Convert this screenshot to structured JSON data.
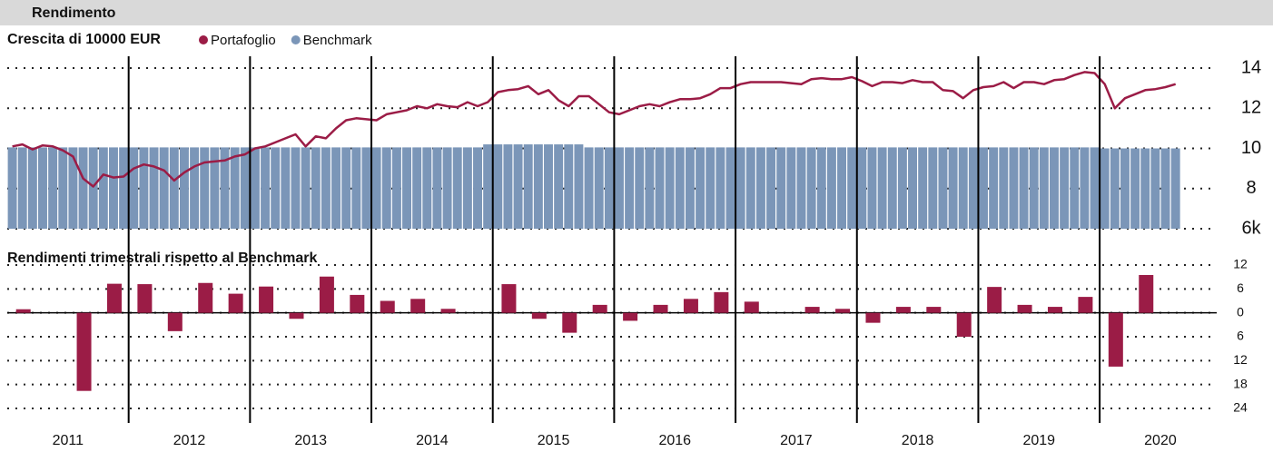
{
  "header": {
    "title": "Rendimento"
  },
  "years": [
    "2011",
    "2012",
    "2013",
    "2014",
    "2015",
    "2016",
    "2017",
    "2018",
    "2019",
    "2020"
  ],
  "chart_data": [
    {
      "type": "combo",
      "title": "Crescita di 10000 EUR",
      "categories": [
        null,
        null,
        null,
        null,
        null,
        null,
        null,
        null,
        null,
        null,
        null,
        null,
        null,
        null,
        null,
        null,
        null,
        null,
        null,
        null,
        null,
        null,
        null,
        null,
        null,
        null,
        null,
        null,
        null,
        null,
        null,
        null,
        null,
        null,
        null,
        null,
        null,
        null,
        null,
        null,
        null,
        null,
        null,
        null,
        null,
        null,
        null,
        null,
        null,
        null,
        null,
        null,
        null,
        null,
        null,
        null,
        null,
        null,
        null,
        null,
        null,
        null,
        null,
        null,
        null,
        null,
        null,
        null,
        null,
        null,
        null,
        null,
        null,
        null,
        null,
        null,
        null,
        null,
        null,
        null,
        null,
        null,
        null,
        null,
        null,
        null,
        null,
        null,
        null,
        null,
        null,
        null,
        null,
        null,
        null,
        null,
        null,
        null,
        null,
        null,
        null,
        null,
        null,
        null,
        null,
        null,
        null,
        null,
        null,
        null,
        null,
        null,
        null,
        null,
        null,
        null
      ],
      "series": [
        {
          "name": "Portafoglio",
          "color": "#9b1c46",
          "kind": "line",
          "values": [
            10.1,
            10.2,
            9.95,
            10.15,
            10.1,
            9.9,
            9.6,
            8.5,
            8.1,
            8.7,
            8.55,
            8.6,
            9.0,
            9.2,
            9.1,
            8.9,
            8.4,
            8.8,
            9.1,
            9.3,
            9.35,
            9.4,
            9.6,
            9.7,
            10.0,
            10.1,
            10.3,
            10.5,
            10.7,
            10.1,
            10.6,
            10.5,
            11.0,
            11.4,
            11.5,
            11.45,
            11.4,
            11.7,
            11.8,
            11.9,
            12.1,
            12.0,
            12.2,
            12.1,
            12.05,
            12.3,
            12.1,
            12.3,
            12.8,
            12.9,
            12.95,
            13.1,
            12.7,
            12.9,
            12.4,
            12.1,
            12.6,
            12.6,
            12.2,
            11.8,
            11.7,
            11.9,
            12.1,
            12.2,
            12.1,
            12.3,
            12.45,
            12.45,
            12.5,
            12.7,
            13.0,
            13.0,
            13.2,
            13.3,
            13.3,
            13.3,
            13.3,
            13.25,
            13.2,
            13.45,
            13.5,
            13.45,
            13.45,
            13.55,
            13.35,
            13.1,
            13.3,
            13.3,
            13.25,
            13.4,
            13.3,
            13.3,
            12.9,
            12.85,
            12.5,
            12.9,
            13.05,
            13.1,
            13.3,
            13.0,
            13.3,
            13.3,
            13.2,
            13.4,
            13.45,
            13.65,
            13.8,
            13.75,
            13.2,
            12.0,
            12.5,
            12.7,
            12.9,
            12.95,
            13.05,
            13.2
          ]
        },
        {
          "name": "Benchmark",
          "color": "#7b96b8",
          "kind": "bar",
          "values": [
            10.05,
            10.05,
            10.05,
            10.05,
            10.05,
            10.05,
            10.05,
            10.05,
            10.05,
            10.05,
            10.05,
            10.05,
            10.05,
            10.05,
            10.05,
            10.05,
            10.05,
            10.05,
            10.05,
            10.05,
            10.05,
            10.05,
            10.05,
            10.05,
            10.05,
            10.05,
            10.05,
            10.05,
            10.05,
            10.05,
            10.05,
            10.05,
            10.05,
            10.05,
            10.05,
            10.05,
            10.05,
            10.05,
            10.05,
            10.05,
            10.05,
            10.05,
            10.05,
            10.05,
            10.05,
            10.05,
            10.05,
            10.2,
            10.2,
            10.2,
            10.2,
            10.2,
            10.2,
            10.2,
            10.2,
            10.2,
            10.2,
            10.05,
            10.05,
            10.05,
            10.05,
            10.05,
            10.05,
            10.05,
            10.05,
            10.05,
            10.05,
            10.05,
            10.05,
            10.05,
            10.05,
            10.05,
            10.05,
            10.05,
            10.05,
            10.05,
            10.05,
            10.05,
            10.05,
            10.05,
            10.05,
            10.05,
            10.05,
            10.05,
            10.05,
            10.05,
            10.05,
            10.05,
            10.05,
            10.05,
            10.05,
            10.05,
            10.05,
            10.05,
            10.05,
            10.05,
            10.05,
            10.05,
            10.05,
            10.05,
            10.05,
            10.05,
            10.05,
            10.05,
            10.05,
            10.05,
            10.05,
            10.05,
            10.0,
            10.0,
            10.0,
            10.0,
            10.0,
            10.0,
            10.0,
            10.0
          ]
        }
      ],
      "ylim": [
        6,
        14
      ],
      "yticks": [
        {
          "value": 6,
          "label": "6k"
        },
        8,
        10,
        12,
        14
      ],
      "grid": true
    },
    {
      "type": "bar",
      "title": "Rendimenti trimestrali rispetto al Benchmark",
      "categories": [
        null,
        null,
        null,
        null,
        null,
        null,
        null,
        null,
        null,
        null,
        null,
        null,
        null,
        null,
        null,
        null,
        null,
        null,
        null,
        null,
        null,
        null,
        null,
        null,
        null,
        null,
        null,
        null,
        null,
        null,
        null,
        null,
        null,
        null,
        null,
        null,
        null,
        null
      ],
      "values": [
        0.9,
        0,
        -19.6,
        7.3,
        7.2,
        -4.6,
        7.5,
        4.8,
        6.6,
        -1.5,
        9.1,
        4.5,
        3,
        3.5,
        1,
        0,
        7.2,
        -1.5,
        -5,
        2,
        -2,
        2,
        3.5,
        5.2,
        2.8,
        0,
        1.5,
        1,
        -2.5,
        1.5,
        1.5,
        -6,
        6.5,
        2,
        1.5,
        4,
        -13.5,
        9.5
      ],
      "color": "#9b1c46",
      "ylim": [
        -24,
        12
      ],
      "yticks": [
        {
          "value": -24,
          "label": "24"
        },
        {
          "value": -18,
          "label": "18"
        },
        {
          "value": -12,
          "label": "12"
        },
        {
          "value": -6,
          "label": "6"
        },
        0,
        6,
        12
      ],
      "grid": true
    }
  ]
}
